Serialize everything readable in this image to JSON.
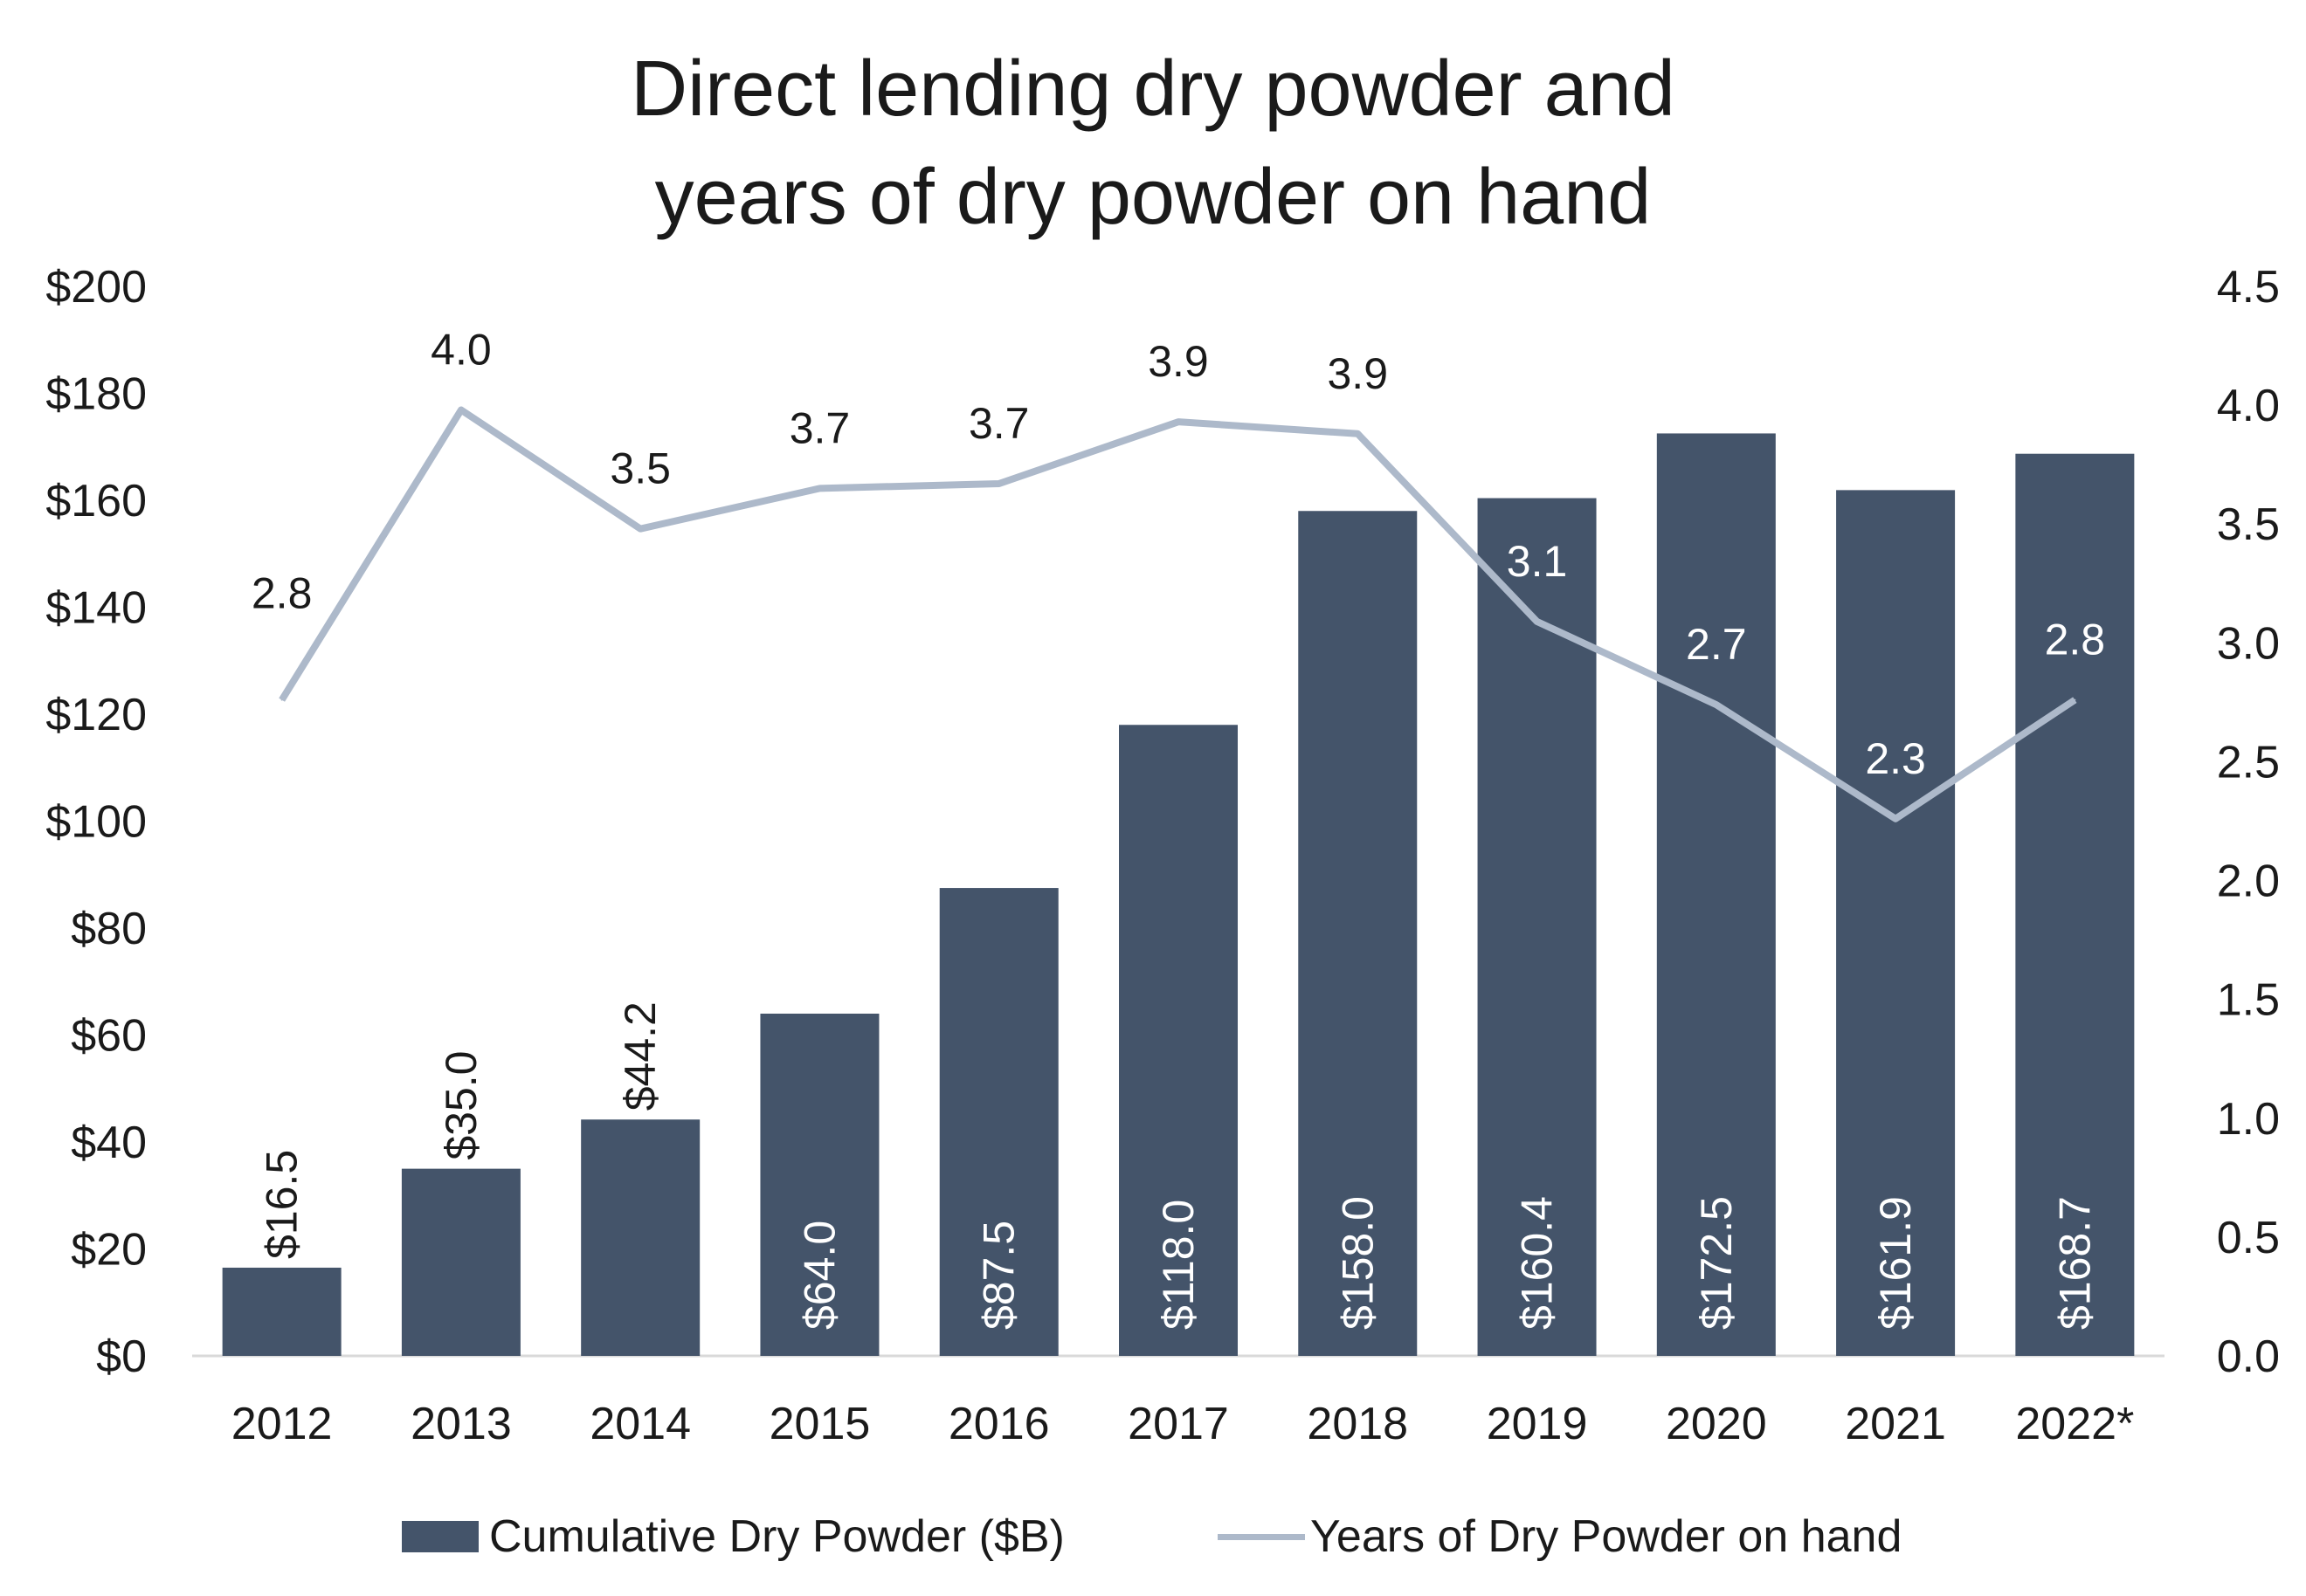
{
  "chart_data": {
    "type": "bar",
    "title_lines": [
      "Direct lending dry powder and",
      "years of dry powder on hand"
    ],
    "categories": [
      "2012",
      "2013",
      "2014",
      "2015",
      "2016",
      "2017",
      "2018",
      "2019",
      "2020",
      "2021",
      "2022*"
    ],
    "series": [
      {
        "name": "Cumulative Dry Powder ($B)",
        "type": "bar",
        "axis": "left",
        "values": [
          16.5,
          35.0,
          44.2,
          64.0,
          87.5,
          118.0,
          158.0,
          160.4,
          172.5,
          161.9,
          168.7
        ],
        "labels": [
          "$16.5",
          "$35.0",
          "$44.2",
          "$64.0",
          "$87.5",
          "$118.0",
          "$158.0",
          "$160.4",
          "$172.5",
          "$161.9",
          "$168.7"
        ],
        "color": "#44546a"
      },
      {
        "name": "Years of Dry Powder on hand",
        "type": "line",
        "axis": "right",
        "values": [
          2.76,
          3.98,
          3.48,
          3.65,
          3.67,
          3.93,
          3.88,
          3.09,
          2.74,
          2.26,
          2.76
        ],
        "labels": [
          "2.8",
          "4.0",
          "3.5",
          "3.7",
          "3.7",
          "3.9",
          "3.9",
          "3.1",
          "2.7",
          "2.3",
          "2.8"
        ],
        "color": "#adb9ca"
      }
    ],
    "y_left": {
      "min": 0,
      "max": 200,
      "ticks": [
        "$0",
        "$20",
        "$40",
        "$60",
        "$80",
        "$100",
        "$120",
        "$140",
        "$160",
        "$180",
        "$200"
      ]
    },
    "y_right": {
      "min": 0,
      "max": 4.5,
      "ticks": [
        "0.0",
        "0.5",
        "1.0",
        "1.5",
        "2.0",
        "2.5",
        "3.0",
        "3.5",
        "4.0",
        "4.5"
      ]
    },
    "grid": false,
    "legend_position": "bottom"
  }
}
